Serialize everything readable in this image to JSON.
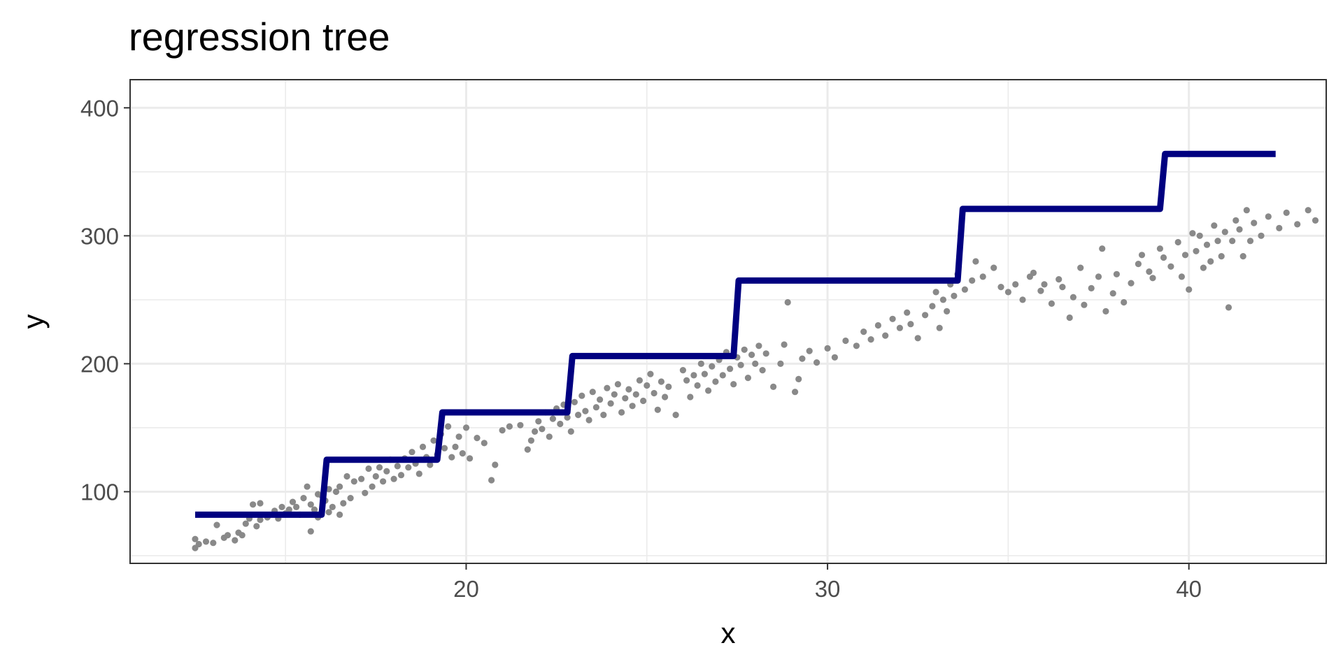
{
  "chart_data": {
    "type": "scatter",
    "title": "regression tree",
    "xlabel": "x",
    "ylabel": "y",
    "xlim": [
      10.7,
      43.8
    ],
    "ylim": [
      44,
      422
    ],
    "x_ticks": [
      20,
      30,
      40
    ],
    "x_tick_labels": [
      "20",
      "30",
      "40"
    ],
    "x_minor_ticks": [
      15,
      25,
      35
    ],
    "y_ticks": [
      100,
      200,
      300,
      400
    ],
    "y_tick_labels": [
      "100",
      "200",
      "300",
      "400"
    ],
    "y_minor_ticks": [
      50,
      150,
      250,
      350
    ],
    "grid": true,
    "legend": "none",
    "colors": {
      "points": "#898989",
      "fit_line": "#000080"
    },
    "series": [
      {
        "kind": "points",
        "points": [
          [
            12.5,
            56
          ],
          [
            12.5,
            63
          ],
          [
            12.6,
            59
          ],
          [
            12.8,
            61
          ],
          [
            13.0,
            60
          ],
          [
            13.1,
            74
          ],
          [
            13.3,
            64
          ],
          [
            13.4,
            66
          ],
          [
            13.6,
            62
          ],
          [
            13.7,
            68
          ],
          [
            13.8,
            66
          ],
          [
            13.9,
            75
          ],
          [
            14.0,
            79
          ],
          [
            14.1,
            90
          ],
          [
            14.2,
            73
          ],
          [
            14.3,
            78
          ],
          [
            14.5,
            80
          ],
          [
            14.7,
            85
          ],
          [
            14.8,
            79
          ],
          [
            14.9,
            88
          ],
          [
            15.0,
            83
          ],
          [
            15.1,
            86
          ],
          [
            15.2,
            92
          ],
          [
            15.3,
            88
          ],
          [
            15.4,
            82
          ],
          [
            15.5,
            95
          ],
          [
            15.6,
            104
          ],
          [
            15.7,
            90
          ],
          [
            15.8,
            86
          ],
          [
            15.9,
            98
          ],
          [
            16.0,
            97
          ],
          [
            16.1,
            93
          ],
          [
            16.2,
            102
          ],
          [
            16.3,
            88
          ],
          [
            16.4,
            100
          ],
          [
            16.5,
            104
          ],
          [
            16.6,
            91
          ],
          [
            16.7,
            112
          ],
          [
            16.8,
            95
          ],
          [
            16.9,
            108
          ],
          [
            15.7,
            69
          ],
          [
            14.3,
            91
          ],
          [
            15.9,
            80
          ],
          [
            16.2,
            84
          ],
          [
            16.5,
            82
          ],
          [
            17.1,
            110
          ],
          [
            17.2,
            99
          ],
          [
            17.3,
            118
          ],
          [
            17.4,
            104
          ],
          [
            17.5,
            112
          ],
          [
            17.6,
            119
          ],
          [
            17.7,
            108
          ],
          [
            17.8,
            116
          ],
          [
            17.9,
            125
          ],
          [
            18.0,
            110
          ],
          [
            18.1,
            120
          ],
          [
            18.2,
            113
          ],
          [
            18.3,
            126
          ],
          [
            18.4,
            119
          ],
          [
            18.5,
            131
          ],
          [
            18.6,
            122
          ],
          [
            18.7,
            114
          ],
          [
            18.8,
            135
          ],
          [
            18.9,
            127
          ],
          [
            19.0,
            121
          ],
          [
            19.1,
            140
          ],
          [
            19.2,
            129
          ],
          [
            19.3,
            145
          ],
          [
            19.4,
            134
          ],
          [
            19.5,
            151
          ],
          [
            19.6,
            127
          ],
          [
            19.7,
            135
          ],
          [
            19.8,
            143
          ],
          [
            19.9,
            130
          ],
          [
            20.0,
            150
          ],
          [
            20.1,
            126
          ],
          [
            20.3,
            142
          ],
          [
            20.5,
            138
          ],
          [
            20.7,
            109
          ],
          [
            20.8,
            121
          ],
          [
            21.0,
            148
          ],
          [
            21.2,
            151
          ],
          [
            21.5,
            152
          ],
          [
            21.7,
            133
          ],
          [
            21.8,
            140
          ],
          [
            21.9,
            147
          ],
          [
            22.0,
            155
          ],
          [
            22.1,
            149
          ],
          [
            22.2,
            162
          ],
          [
            22.3,
            143
          ],
          [
            22.4,
            157
          ],
          [
            22.5,
            165
          ],
          [
            22.6,
            153
          ],
          [
            22.7,
            168
          ],
          [
            22.8,
            158
          ],
          [
            22.9,
            147
          ],
          [
            23.0,
            170
          ],
          [
            23.1,
            160
          ],
          [
            23.2,
            175
          ],
          [
            23.3,
            163
          ],
          [
            23.4,
            156
          ],
          [
            23.5,
            178
          ],
          [
            23.6,
            166
          ],
          [
            23.7,
            172
          ],
          [
            23.8,
            160
          ],
          [
            23.9,
            181
          ],
          [
            24.0,
            169
          ],
          [
            24.1,
            176
          ],
          [
            24.2,
            184
          ],
          [
            24.3,
            162
          ],
          [
            24.4,
            173
          ],
          [
            24.5,
            180
          ],
          [
            24.6,
            167
          ],
          [
            24.7,
            176
          ],
          [
            24.8,
            187
          ],
          [
            24.9,
            171
          ],
          [
            25.0,
            183
          ],
          [
            25.1,
            192
          ],
          [
            25.2,
            177
          ],
          [
            25.3,
            164
          ],
          [
            25.4,
            186
          ],
          [
            25.5,
            174
          ],
          [
            25.6,
            182
          ],
          [
            25.8,
            160
          ],
          [
            26.0,
            195
          ],
          [
            26.1,
            187
          ],
          [
            26.2,
            174
          ],
          [
            26.3,
            191
          ],
          [
            26.4,
            183
          ],
          [
            26.5,
            200
          ],
          [
            26.6,
            192
          ],
          [
            26.7,
            179
          ],
          [
            26.8,
            198
          ],
          [
            26.9,
            186
          ],
          [
            27.0,
            203
          ],
          [
            27.1,
            191
          ],
          [
            27.2,
            209
          ],
          [
            27.3,
            196
          ],
          [
            27.4,
            184
          ],
          [
            27.5,
            205
          ],
          [
            27.6,
            199
          ],
          [
            27.7,
            211
          ],
          [
            27.8,
            189
          ],
          [
            27.9,
            207
          ],
          [
            28.0,
            200
          ],
          [
            28.1,
            214
          ],
          [
            28.2,
            195
          ],
          [
            28.3,
            208
          ],
          [
            28.5,
            182
          ],
          [
            28.7,
            200
          ],
          [
            28.8,
            215
          ],
          [
            28.9,
            248
          ],
          [
            29.1,
            178
          ],
          [
            29.2,
            188
          ],
          [
            29.3,
            204
          ],
          [
            29.5,
            210
          ],
          [
            29.7,
            201
          ],
          [
            30.0,
            212
          ],
          [
            30.2,
            205
          ],
          [
            30.5,
            218
          ],
          [
            30.8,
            214
          ],
          [
            31.0,
            225
          ],
          [
            31.2,
            219
          ],
          [
            31.4,
            230
          ],
          [
            31.6,
            222
          ],
          [
            31.8,
            235
          ],
          [
            32.0,
            228
          ],
          [
            32.2,
            240
          ],
          [
            32.3,
            231
          ],
          [
            32.5,
            220
          ],
          [
            32.7,
            238
          ],
          [
            32.9,
            245
          ],
          [
            33.0,
            256
          ],
          [
            33.1,
            228
          ],
          [
            33.2,
            250
          ],
          [
            33.3,
            241
          ],
          [
            33.4,
            262
          ],
          [
            33.5,
            253
          ],
          [
            33.6,
            270
          ],
          [
            33.8,
            258
          ],
          [
            34.0,
            265
          ],
          [
            34.1,
            280
          ],
          [
            34.3,
            268
          ],
          [
            34.6,
            275
          ],
          [
            34.8,
            260
          ],
          [
            35.0,
            256
          ],
          [
            35.2,
            262
          ],
          [
            35.4,
            250
          ],
          [
            35.6,
            268
          ],
          [
            35.7,
            271
          ],
          [
            35.9,
            257
          ],
          [
            36.0,
            262
          ],
          [
            36.2,
            247
          ],
          [
            36.4,
            266
          ],
          [
            36.5,
            260
          ],
          [
            36.7,
            236
          ],
          [
            36.8,
            252
          ],
          [
            37.0,
            275
          ],
          [
            37.1,
            246
          ],
          [
            37.3,
            259
          ],
          [
            37.5,
            268
          ],
          [
            37.6,
            290
          ],
          [
            37.7,
            241
          ],
          [
            37.9,
            255
          ],
          [
            38.0,
            270
          ],
          [
            38.2,
            248
          ],
          [
            38.4,
            263
          ],
          [
            38.6,
            278
          ],
          [
            38.7,
            285
          ],
          [
            38.9,
            272
          ],
          [
            39.0,
            267
          ],
          [
            39.2,
            290
          ],
          [
            39.3,
            283
          ],
          [
            39.5,
            276
          ],
          [
            39.7,
            295
          ],
          [
            39.8,
            268
          ],
          [
            39.9,
            285
          ],
          [
            40.0,
            258
          ],
          [
            40.1,
            302
          ],
          [
            40.2,
            288
          ],
          [
            40.3,
            300
          ],
          [
            40.4,
            275
          ],
          [
            40.5,
            293
          ],
          [
            40.6,
            280
          ],
          [
            40.7,
            308
          ],
          [
            40.8,
            296
          ],
          [
            40.9,
            284
          ],
          [
            41.0,
            303
          ],
          [
            41.1,
            244
          ],
          [
            41.2,
            296
          ],
          [
            41.3,
            312
          ],
          [
            41.4,
            305
          ],
          [
            41.5,
            284
          ],
          [
            41.6,
            320
          ],
          [
            41.7,
            296
          ],
          [
            41.8,
            310
          ],
          [
            42.0,
            300
          ],
          [
            42.2,
            315
          ],
          [
            42.5,
            306
          ],
          [
            42.7,
            318
          ],
          [
            43.0,
            309
          ],
          [
            43.3,
            320
          ],
          [
            43.5,
            312
          ]
        ],
        "notes": "individual observations (grey dots)"
      },
      {
        "kind": "step",
        "x": [
          12.5,
          16.0,
          16.0,
          19.2,
          19.2,
          22.8,
          22.8,
          27.4,
          27.4,
          33.6,
          33.6,
          39.2,
          39.2,
          42.4
        ],
        "y": [
          82,
          82,
          125,
          125,
          162,
          162,
          206,
          206,
          265,
          265,
          321,
          321,
          364,
          364
        ]
      }
    ]
  }
}
